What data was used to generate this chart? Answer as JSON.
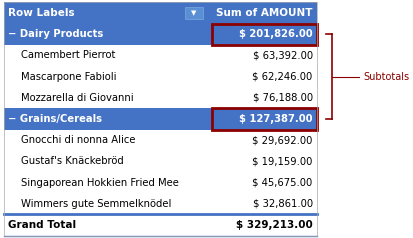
{
  "header_labels": [
    "Row Labels",
    "Sum of AMOUNT"
  ],
  "header_bg": "#4472C4",
  "header_fg": "#FFFFFF",
  "header_filter_icon": true,
  "rows": [
    {
      "label": "− Dairy Products",
      "value": "$ 201,826.00",
      "type": "subtotal",
      "indent": 0
    },
    {
      "label": "Camembert Pierrot",
      "value": "$ 63,392.00",
      "type": "item",
      "indent": 1
    },
    {
      "label": "Mascarpone Fabioli",
      "value": "$ 62,246.00",
      "type": "item",
      "indent": 1
    },
    {
      "label": "Mozzarella di Giovanni",
      "value": "$ 76,188.00",
      "type": "item",
      "indent": 1
    },
    {
      "label": "− Grains/Cereals",
      "value": "$ 127,387.00",
      "type": "subtotal",
      "indent": 0
    },
    {
      "label": "Gnocchi di nonna Alice",
      "value": "$ 29,692.00",
      "type": "item",
      "indent": 1
    },
    {
      "label": "Gustaf's Knäckebröd",
      "value": "$ 19,159.00",
      "type": "item",
      "indent": 1
    },
    {
      "label": "Singaporean Hokkien Fried Mee",
      "value": "$ 45,675.00",
      "type": "item",
      "indent": 1
    },
    {
      "label": "Wimmers gute Semmelknödel",
      "value": "$ 32,861.00",
      "type": "item",
      "indent": 1
    },
    {
      "label": "Grand Total",
      "value": "$ 329,213.00",
      "type": "grandtotal",
      "indent": 0
    }
  ],
  "subtotal_bg": "#4472C4",
  "subtotal_fg": "#FFFFFF",
  "item_bg_odd": "#FFFFFF",
  "item_bg_even": "#FFFFFF",
  "grandtotal_bg": "#FFFFFF",
  "grandtotal_fg": "#000000",
  "grandtotal_border_color": "#4472C4",
  "highlight_border_color": "#8B0000",
  "highlight_rows": [
    0,
    4
  ],
  "subtotals_label": "Subtotals",
  "subtotals_label_color": "#8B0000",
  "fig_width": 4.13,
  "fig_height": 2.38,
  "dpi": 100
}
